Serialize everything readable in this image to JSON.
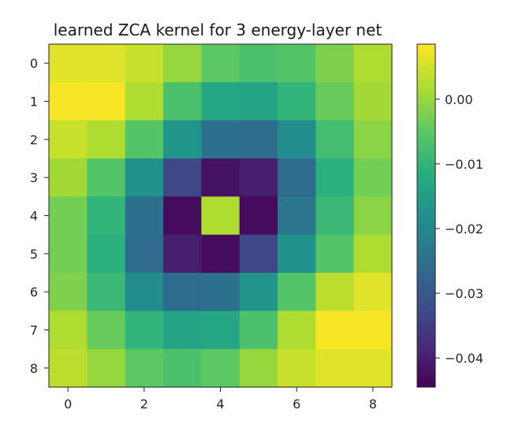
{
  "chart_data": {
    "type": "heatmap",
    "title": "learned ZCA kernel for 3 energy-layer net",
    "xlabel": "",
    "ylabel": "",
    "rows": 9,
    "cols": 9,
    "x_ticks": [
      0,
      2,
      4,
      6,
      8
    ],
    "y_ticks": [
      0,
      1,
      2,
      3,
      4,
      5,
      6,
      7,
      8
    ],
    "colormap": "viridis",
    "colorbar": {
      "vmin": -0.0445,
      "vmax": 0.0085,
      "ticks": [
        0.0,
        -0.01,
        -0.02,
        -0.03,
        -0.04
      ],
      "tick_labels": [
        "0.00",
        "−0.01",
        "−0.02",
        "−0.03",
        "−0.04"
      ]
    },
    "values": [
      [
        0.006,
        0.006,
        0.004,
        0.0,
        -0.005,
        -0.007,
        -0.006,
        -0.002,
        0.002
      ],
      [
        0.008,
        0.008,
        0.002,
        -0.007,
        -0.013,
        -0.014,
        -0.01,
        -0.004,
        0.001
      ],
      [
        0.004,
        0.002,
        -0.006,
        -0.017,
        -0.025,
        -0.026,
        -0.019,
        -0.008,
        -0.001
      ],
      [
        0.001,
        -0.006,
        -0.018,
        -0.033,
        -0.042,
        -0.04,
        -0.026,
        -0.011,
        -0.003
      ],
      [
        -0.003,
        -0.01,
        -0.025,
        -0.043,
        0.002,
        -0.043,
        -0.024,
        -0.009,
        -0.001
      ],
      [
        -0.003,
        -0.011,
        -0.026,
        -0.04,
        -0.043,
        -0.033,
        -0.018,
        -0.006,
        0.002
      ],
      [
        -0.002,
        -0.009,
        -0.019,
        -0.026,
        -0.025,
        -0.017,
        -0.006,
        0.003,
        0.006
      ],
      [
        0.002,
        -0.004,
        -0.01,
        -0.014,
        -0.013,
        -0.007,
        0.002,
        0.008,
        0.008
      ],
      [
        0.003,
        0.0,
        -0.005,
        -0.007,
        -0.005,
        0.0,
        0.004,
        0.006,
        0.006
      ]
    ]
  }
}
